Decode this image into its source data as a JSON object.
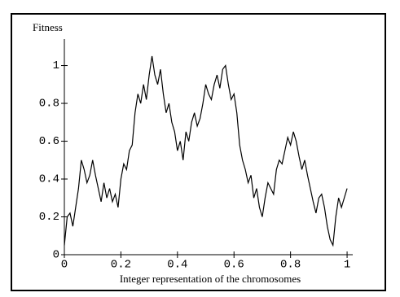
{
  "chart_data": {
    "type": "line",
    "ylabel": "Fitness",
    "xlabel": "Integer representation of the chromosomes",
    "xlim": [
      0,
      1.02
    ],
    "ylim": [
      0,
      1.14
    ],
    "xticks": [
      0,
      0.2,
      0.4,
      0.6,
      0.8,
      1
    ],
    "yticks": [
      0,
      0.2,
      0.4,
      0.6,
      0.8,
      1
    ],
    "color": "#000000",
    "x": [
      0,
      0.01,
      0.02,
      0.03,
      0.04,
      0.05,
      0.06,
      0.07,
      0.08,
      0.09,
      0.1,
      0.11,
      0.12,
      0.13,
      0.14,
      0.15,
      0.16,
      0.17,
      0.18,
      0.19,
      0.2,
      0.21,
      0.22,
      0.23,
      0.24,
      0.25,
      0.26,
      0.27,
      0.28,
      0.29,
      0.3,
      0.31,
      0.32,
      0.33,
      0.34,
      0.35,
      0.36,
      0.37,
      0.38,
      0.39,
      0.4,
      0.41,
      0.42,
      0.43,
      0.44,
      0.45,
      0.46,
      0.47,
      0.48,
      0.49,
      0.5,
      0.51,
      0.52,
      0.53,
      0.54,
      0.55,
      0.56,
      0.57,
      0.58,
      0.59,
      0.6,
      0.61,
      0.62,
      0.63,
      0.64,
      0.65,
      0.66,
      0.67,
      0.68,
      0.69,
      0.7,
      0.71,
      0.72,
      0.73,
      0.74,
      0.75,
      0.76,
      0.77,
      0.78,
      0.79,
      0.8,
      0.81,
      0.82,
      0.83,
      0.84,
      0.85,
      0.86,
      0.87,
      0.88,
      0.89,
      0.9,
      0.91,
      0.92,
      0.93,
      0.94,
      0.95,
      0.96,
      0.97,
      0.98,
      0.99,
      1
    ],
    "values": [
      0.05,
      0.2,
      0.22,
      0.15,
      0.25,
      0.35,
      0.5,
      0.45,
      0.38,
      0.42,
      0.5,
      0.42,
      0.35,
      0.28,
      0.38,
      0.3,
      0.35,
      0.28,
      0.32,
      0.25,
      0.4,
      0.48,
      0.45,
      0.55,
      0.58,
      0.75,
      0.85,
      0.8,
      0.9,
      0.82,
      0.95,
      1.05,
      0.95,
      0.9,
      0.98,
      0.85,
      0.75,
      0.8,
      0.7,
      0.65,
      0.55,
      0.6,
      0.5,
      0.65,
      0.6,
      0.7,
      0.75,
      0.68,
      0.72,
      0.8,
      0.9,
      0.85,
      0.82,
      0.9,
      0.95,
      0.88,
      0.98,
      1.0,
      0.9,
      0.82,
      0.85,
      0.75,
      0.58,
      0.5,
      0.45,
      0.38,
      0.42,
      0.3,
      0.35,
      0.25,
      0.2,
      0.3,
      0.38,
      0.35,
      0.32,
      0.45,
      0.5,
      0.48,
      0.55,
      0.62,
      0.58,
      0.65,
      0.6,
      0.52,
      0.45,
      0.5,
      0.42,
      0.35,
      0.28,
      0.22,
      0.3,
      0.32,
      0.25,
      0.15,
      0.08,
      0.05,
      0.2,
      0.3,
      0.25,
      0.3,
      0.35
    ]
  }
}
